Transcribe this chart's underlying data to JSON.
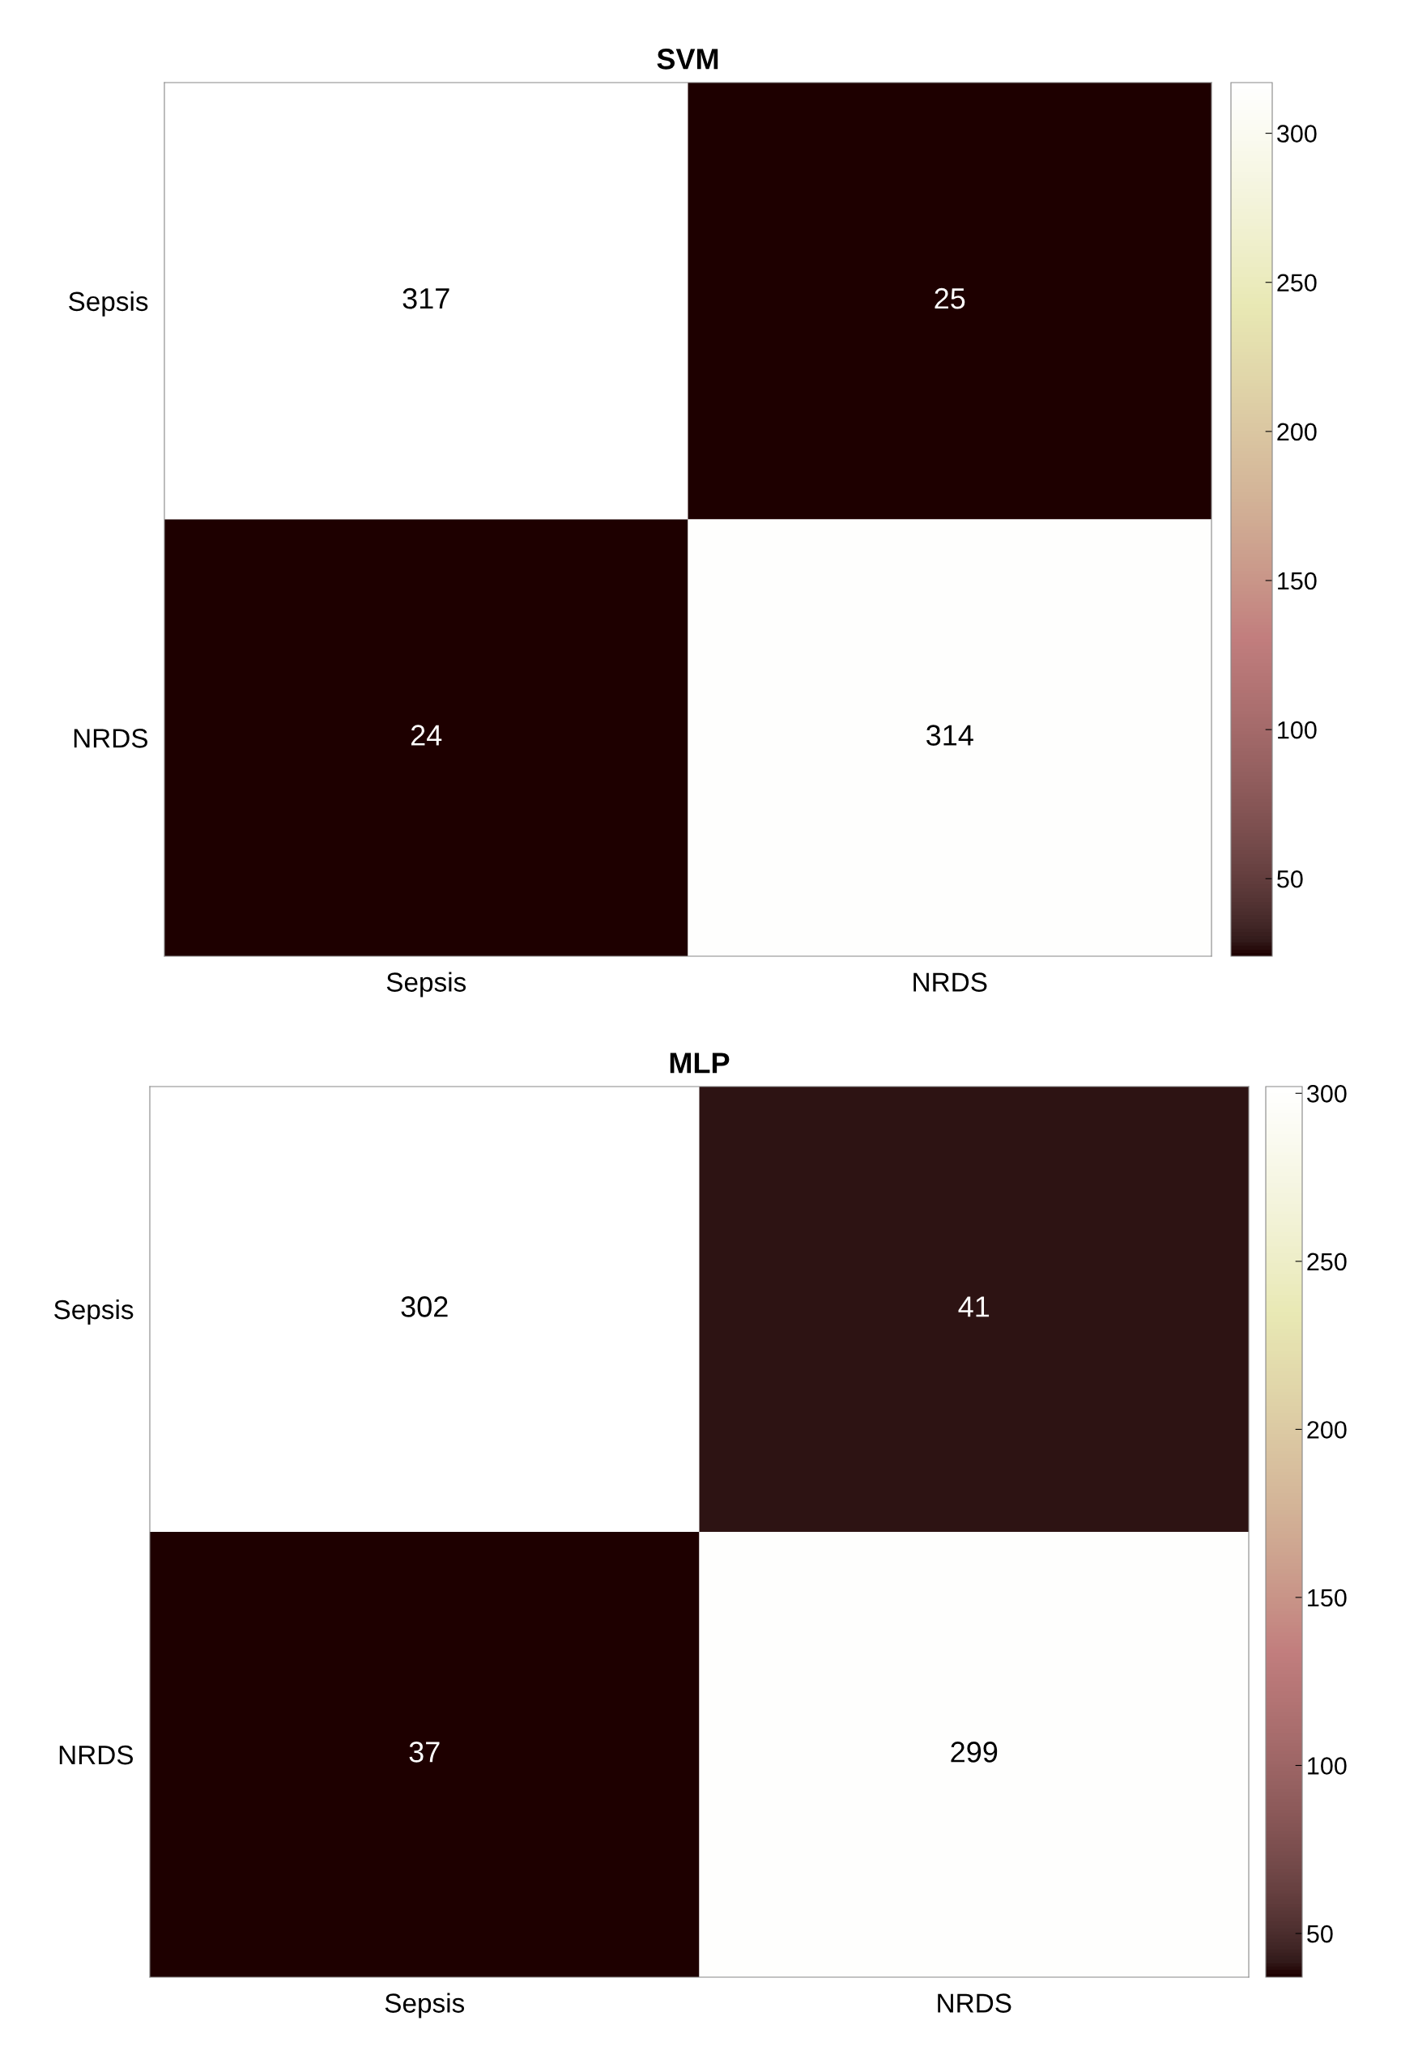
{
  "chart_data": [
    {
      "type": "heatmap",
      "title": "SVM",
      "categories": [
        "Sepsis",
        "NRDS"
      ],
      "y_categories": [
        "Sepsis",
        "NRDS"
      ],
      "cells": [
        [
          317,
          25
        ],
        [
          24,
          314
        ]
      ],
      "data_labels": true,
      "clim": [
        24,
        317
      ],
      "cticks": [
        50,
        100,
        150,
        200,
        250,
        300
      ]
    },
    {
      "type": "heatmap",
      "title": "MLP",
      "categories": [
        "Sepsis",
        "NRDS"
      ],
      "y_categories": [
        "Sepsis",
        "NRDS"
      ],
      "cells": [
        [
          302,
          41
        ],
        [
          37,
          299
        ]
      ],
      "data_labels": true,
      "clim": [
        37,
        302
      ],
      "cticks": [
        50,
        100,
        150,
        200,
        250,
        300
      ]
    }
  ]
}
